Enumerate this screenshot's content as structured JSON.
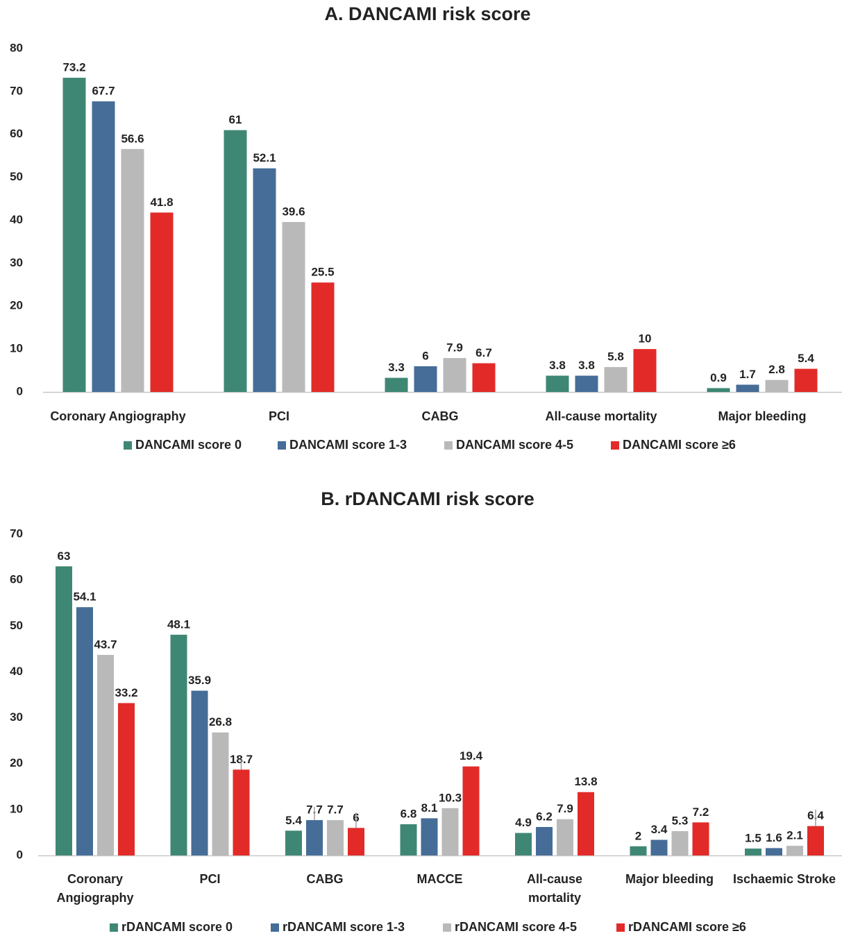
{
  "chart_data": [
    {
      "type": "bar",
      "title": "A. DANCAMI risk score",
      "xlabel": "",
      "ylabel": "",
      "ylim": [
        0,
        80
      ],
      "yticks": [
        "0",
        "10",
        "20",
        "30",
        "40",
        "50",
        "60",
        "70",
        "80"
      ],
      "grid": false,
      "legend_position": "bottom",
      "categories": [
        [
          "Coronary Angiography"
        ],
        [
          "PCI"
        ],
        [
          "CABG"
        ],
        [
          "All-cause mortality"
        ],
        [
          "Major bleeding"
        ]
      ],
      "series": [
        {
          "name": "DANCAMI score 0",
          "color": "#3f8775",
          "values": [
            73.2,
            61,
            3.3,
            3.8,
            0.9
          ],
          "labels": [
            "73.2",
            "61",
            "3.3",
            "3.8",
            "0.9"
          ]
        },
        {
          "name": "DANCAMI score 1-3",
          "color": "#456d97",
          "values": [
            67.7,
            52.1,
            6,
            3.8,
            1.7
          ],
          "labels": [
            "67.7",
            "52.1",
            "6",
            "3.8",
            "1.7"
          ]
        },
        {
          "name": "DANCAMI score 4-5",
          "color": "#b9b9b9",
          "values": [
            56.6,
            39.6,
            7.9,
            5.8,
            2.8
          ],
          "labels": [
            "56.6",
            "39.6",
            "7.9",
            "5.8",
            "2.8"
          ]
        },
        {
          "name": "DANCAMI score ≥6",
          "color": "#e22b28",
          "values": [
            41.8,
            25.5,
            6.7,
            10,
            5.4
          ],
          "labels": [
            "41.8",
            "25.5",
            "6.7",
            "10",
            "5.4"
          ]
        }
      ]
    },
    {
      "type": "bar",
      "title": "B. rDANCAMI risk score",
      "xlabel": "",
      "ylabel": "",
      "ylim": [
        0,
        70
      ],
      "yticks": [
        "0",
        "10",
        "20",
        "30",
        "40",
        "50",
        "60",
        "70"
      ],
      "grid": false,
      "legend_position": "bottom",
      "categories": [
        [
          "Coronary",
          "Angiography"
        ],
        [
          "PCI"
        ],
        [
          "CABG"
        ],
        [
          "MACCE"
        ],
        [
          "All-cause",
          "mortality"
        ],
        [
          "Major bleeding"
        ],
        [
          "Ischaemic Stroke"
        ]
      ],
      "series": [
        {
          "name": "rDANCAMI score 0",
          "color": "#3f8775",
          "values": [
            63,
            48.1,
            5.4,
            6.8,
            4.9,
            2,
            1.5
          ],
          "labels": [
            "63",
            "48.1",
            "5.4",
            "6.8",
            "4.9",
            "2",
            "1.5"
          ]
        },
        {
          "name": "rDANCAMI score 1-3",
          "color": "#456d97",
          "values": [
            54.1,
            35.9,
            7.7,
            8.1,
            6.2,
            3.4,
            1.6
          ],
          "labels": [
            "54.1",
            "35.9",
            "7.7",
            "8.1",
            "6.2",
            "3.4",
            "1.6"
          ]
        },
        {
          "name": "rDANCAMI score 4-5",
          "color": "#b9b9b9",
          "values": [
            43.7,
            26.8,
            7.7,
            10.3,
            7.9,
            5.3,
            2.1
          ],
          "labels": [
            "43.7",
            "26.8",
            "7.7",
            "10.3",
            "7.9",
            "5.3",
            "2.1"
          ]
        },
        {
          "name": "rDANCAMI score ≥6",
          "color": "#e22b28",
          "values": [
            33.2,
            18.7,
            6,
            19.4,
            13.8,
            7.2,
            6.4
          ],
          "labels": [
            "33.2",
            "18.7",
            "6",
            "19.4",
            "13.8",
            "7.2",
            "6.4"
          ]
        }
      ],
      "error_bars": [
        {
          "series": 1,
          "category": 2,
          "upper": 10.6
        },
        {
          "series": 3,
          "category": 2,
          "upper": 9.3
        },
        {
          "series": 3,
          "category": 1,
          "upper": 20.8
        },
        {
          "series": 3,
          "category": 6,
          "upper": 10.0
        }
      ]
    }
  ]
}
